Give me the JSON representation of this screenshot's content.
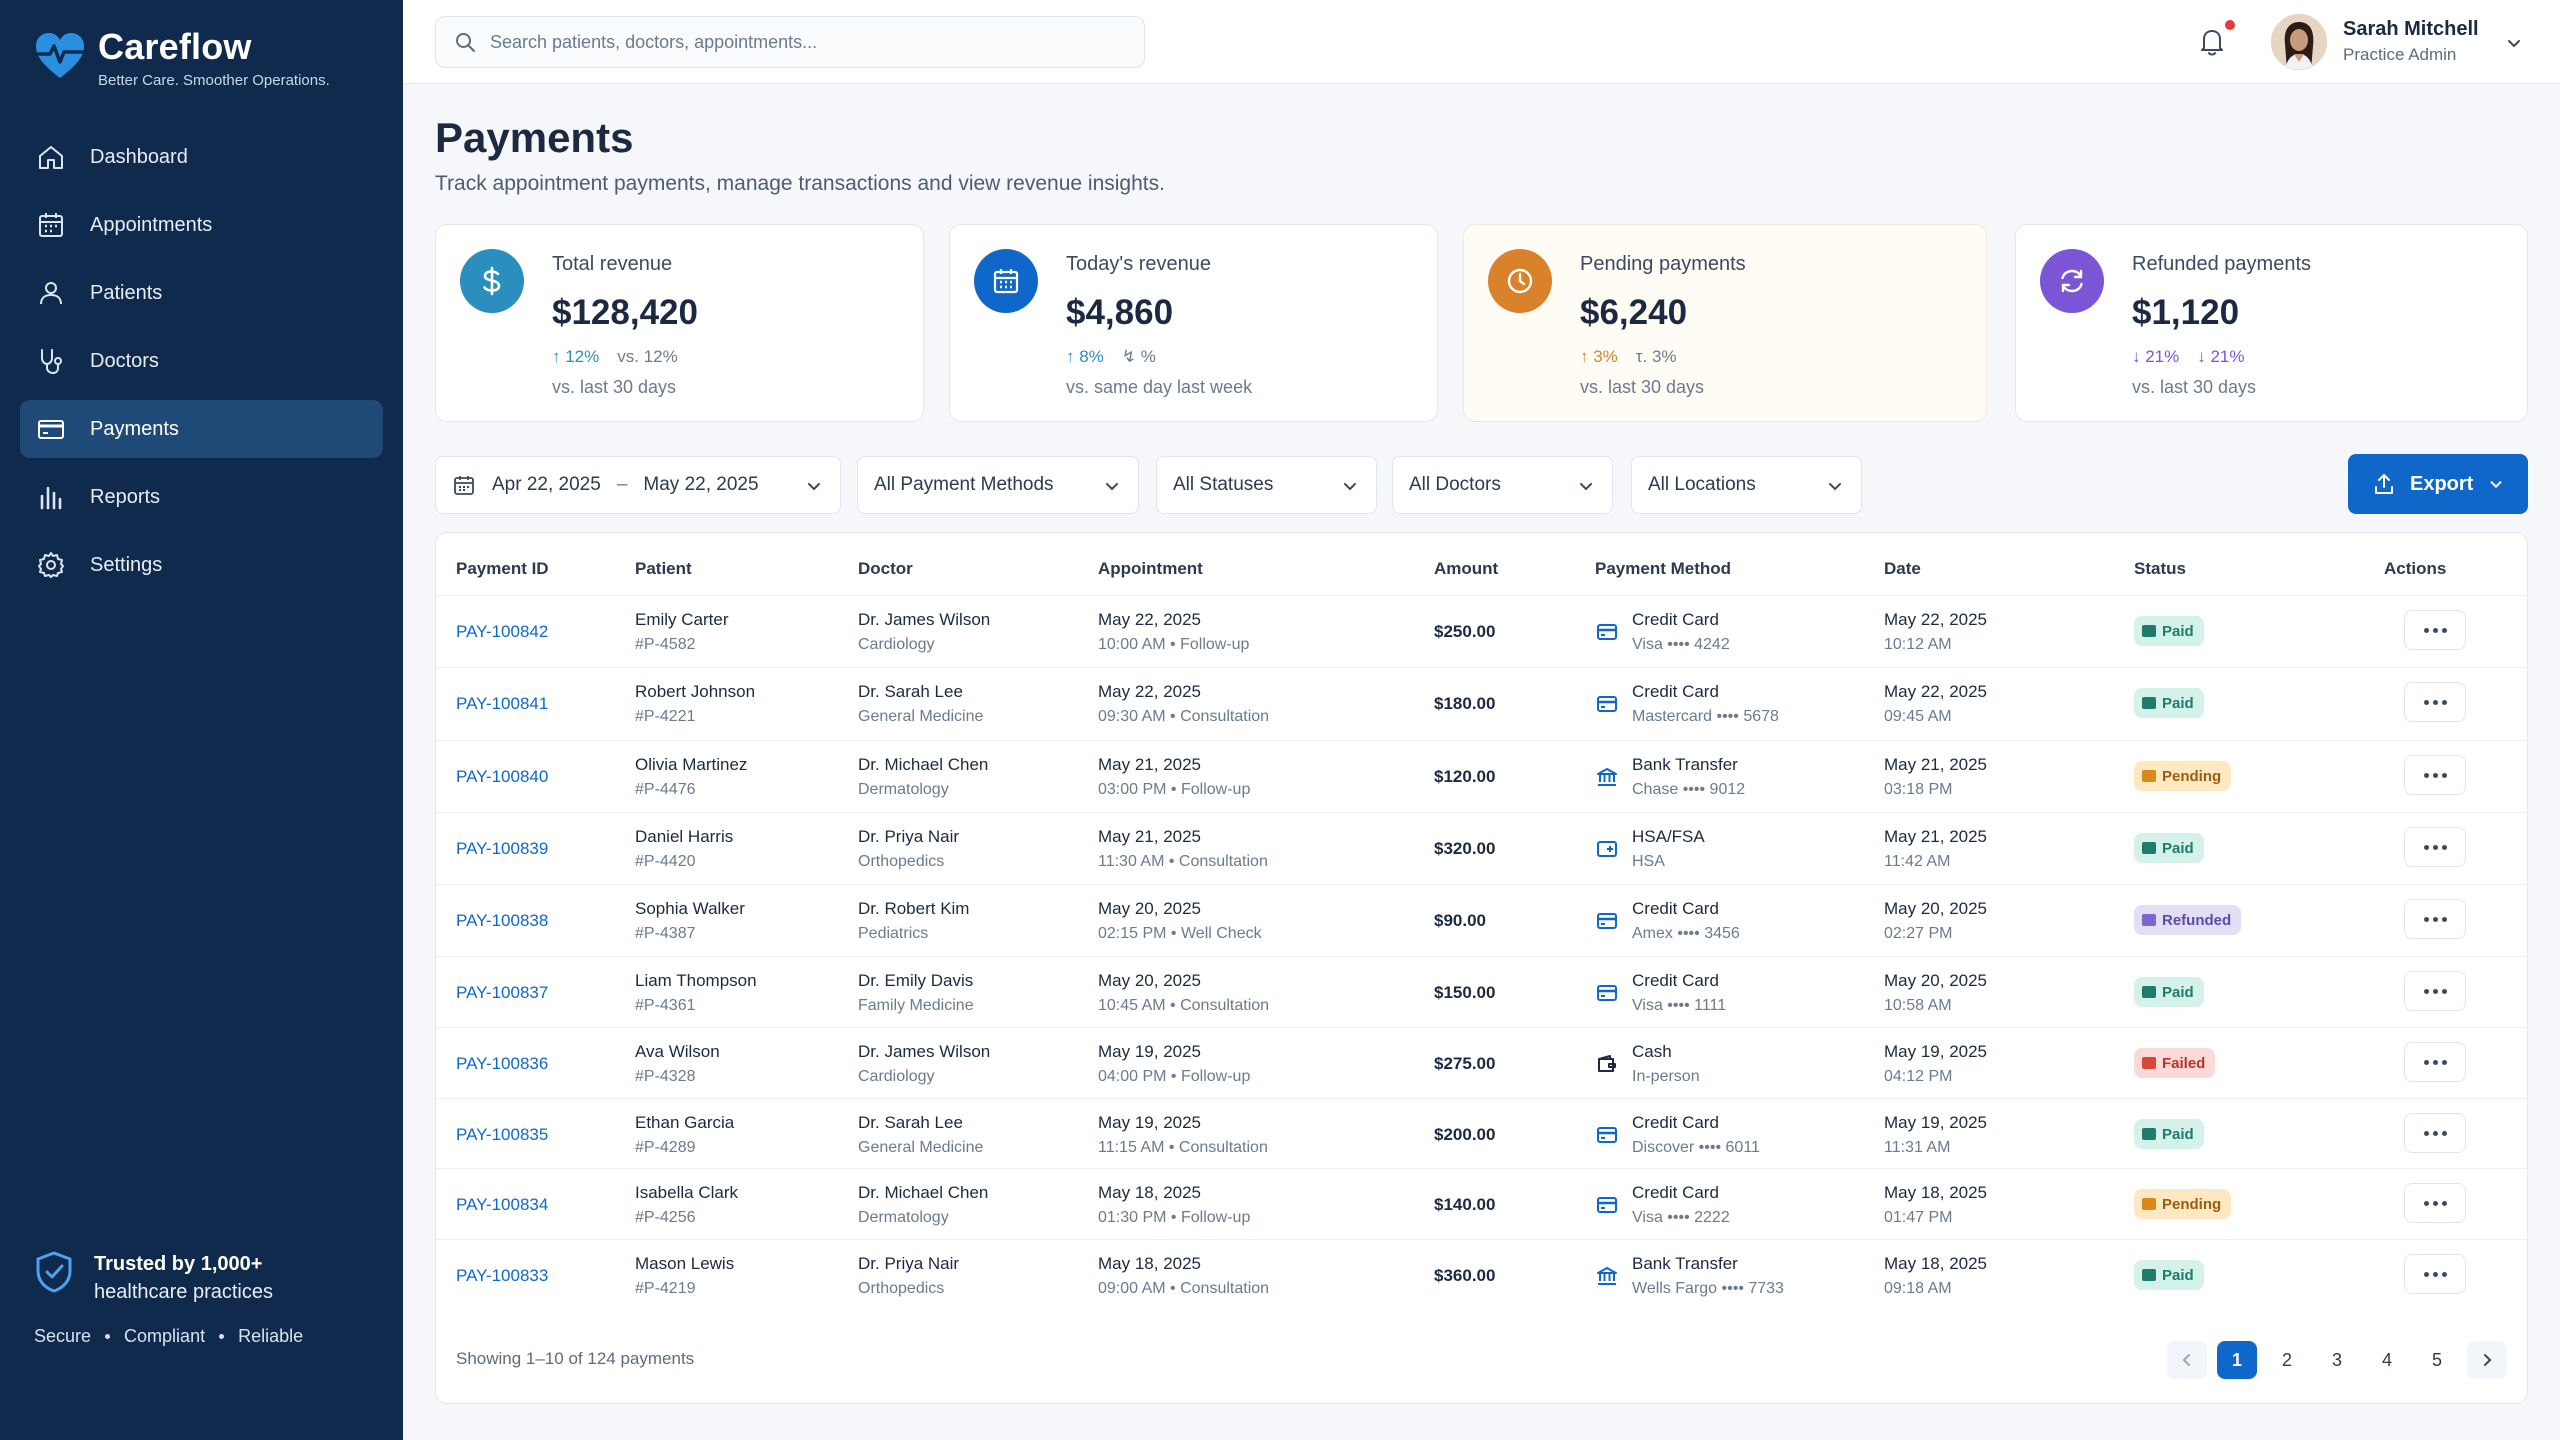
{
  "brand": {
    "name": "Careflow",
    "tagline": "Better Care. Smoother Operations."
  },
  "sidebar": {
    "items": [
      {
        "label": "Dashboard",
        "icon": "home-icon"
      },
      {
        "label": "Appointments",
        "icon": "calendar-icon"
      },
      {
        "label": "Patients",
        "icon": "user-icon"
      },
      {
        "label": "Doctors",
        "icon": "stethoscope-icon"
      },
      {
        "label": "Payments",
        "icon": "card-icon",
        "active": true
      },
      {
        "label": "Reports",
        "icon": "bar-chart-icon"
      },
      {
        "label": "Settings",
        "icon": "gear-icon"
      }
    ],
    "trust_title": "Trusted by 1,000+",
    "trust_sub": "healthcare practices",
    "trust_foot": [
      "Secure",
      "Compliant",
      "Reliable"
    ]
  },
  "header": {
    "search_placeholder": "Search patients, doctors, appointments...",
    "user_name": "Sarah Mitchell",
    "user_role": "Practice Admin"
  },
  "page": {
    "title": "Payments",
    "subtitle": "Track appointment payments, manage transactions and view revenue insights."
  },
  "stats": [
    {
      "label": "Total revenue",
      "value": "$128,420",
      "delta1": "↑ 12%",
      "delta2": "vs. 12%",
      "note": "vs. last 30 days",
      "color": "#2a8fbf"
    },
    {
      "label": "Today's revenue",
      "value": "$4,860",
      "delta1": "↑ 8%",
      "delta2": "↯ %",
      "note": "vs. same day last week",
      "color": "#0f68c9"
    },
    {
      "label": "Pending payments",
      "value": "$6,240",
      "delta1": "↑ 3%",
      "delta2": "τ. 3%",
      "note": "vs. last 30 days",
      "color": "#d9822b"
    },
    {
      "label": "Refunded payments",
      "value": "$1,120",
      "delta1": "↓ 21%",
      "delta2": "↓ 21%",
      "note": "vs. last 30 days",
      "color": "#7a55d6"
    }
  ],
  "filters": {
    "date_from": "Apr 22, 2025",
    "date_sep": "–",
    "date_to": "May 22, 2025",
    "method": "All Payment Methods",
    "status": "All Statuses",
    "doctor": "All Doctors",
    "location": "All Locations",
    "export_label": "Export"
  },
  "table": {
    "headers": [
      "Payment ID",
      "Patient",
      "Doctor",
      "Appointment",
      "Amount",
      "Payment Method",
      "Date",
      "Status",
      "Actions"
    ],
    "rows": [
      {
        "id": "PAY-100842",
        "patient": "Emily Carter",
        "pnum": "#P-4582",
        "doctor": "Dr. James Wilson",
        "spec": "Cardiology",
        "appt_date": "May 22, 2025",
        "appt_time": "10:00 AM • Follow-up",
        "amount": "$250.00",
        "method": "Credit Card",
        "method_sub": "Visa •••• 4242",
        "method_icon": "card",
        "date": "May 22, 2025",
        "time": "10:12 AM",
        "status": "Paid"
      },
      {
        "id": "PAY-100841",
        "patient": "Robert Johnson",
        "pnum": "#P-4221",
        "doctor": "Dr. Sarah Lee",
        "spec": "General Medicine",
        "appt_date": "May 22, 2025",
        "appt_time": "09:30 AM • Consultation",
        "amount": "$180.00",
        "method": "Credit Card",
        "method_sub": "Mastercard •••• 5678",
        "method_icon": "card",
        "date": "May 22, 2025",
        "time": "09:45 AM",
        "status": "Paid"
      },
      {
        "id": "PAY-100840",
        "patient": "Olivia Martinez",
        "pnum": "#P-4476",
        "doctor": "Dr. Michael Chen",
        "spec": "Dermatology",
        "appt_date": "May 21, 2025",
        "appt_time": "03:00 PM • Follow-up",
        "amount": "$120.00",
        "method": "Bank Transfer",
        "method_sub": "Chase •••• 9012",
        "method_icon": "bank",
        "date": "May 21, 2025",
        "time": "03:18 PM",
        "status": "Pending"
      },
      {
        "id": "PAY-100839",
        "patient": "Daniel Harris",
        "pnum": "#P-4420",
        "doctor": "Dr. Priya Nair",
        "spec": "Orthopedics",
        "appt_date": "May 21, 2025",
        "appt_time": "11:30 AM • Consultation",
        "amount": "$320.00",
        "method": "HSA/FSA",
        "method_sub": "HSA",
        "method_icon": "hsa",
        "date": "May 21, 2025",
        "time": "11:42 AM",
        "status": "Paid"
      },
      {
        "id": "PAY-100838",
        "patient": "Sophia Walker",
        "pnum": "#P-4387",
        "doctor": "Dr. Robert Kim",
        "spec": "Pediatrics",
        "appt_date": "May 20, 2025",
        "appt_time": "02:15 PM • Well Check",
        "amount": "$90.00",
        "method": "Credit Card",
        "method_sub": "Amex •••• 3456",
        "method_icon": "card",
        "date": "May 20, 2025",
        "time": "02:27 PM",
        "status": "Refunded"
      },
      {
        "id": "PAY-100837",
        "patient": "Liam Thompson",
        "pnum": "#P-4361",
        "doctor": "Dr. Emily Davis",
        "spec": "Family Medicine",
        "appt_date": "May 20, 2025",
        "appt_time": "10:45 AM • Consultation",
        "amount": "$150.00",
        "method": "Credit Card",
        "method_sub": "Visa •••• 1111",
        "method_icon": "card",
        "date": "May 20, 2025",
        "time": "10:58 AM",
        "status": "Paid"
      },
      {
        "id": "PAY-100836",
        "patient": "Ava Wilson",
        "pnum": "#P-4328",
        "doctor": "Dr. James Wilson",
        "spec": "Cardiology",
        "appt_date": "May 19, 2025",
        "appt_time": "04:00 PM • Follow-up",
        "amount": "$275.00",
        "method": "Cash",
        "method_sub": "In-person",
        "method_icon": "cash",
        "date": "May 19, 2025",
        "time": "04:12 PM",
        "status": "Failed"
      },
      {
        "id": "PAY-100835",
        "patient": "Ethan Garcia",
        "pnum": "#P-4289",
        "doctor": "Dr. Sarah Lee",
        "spec": "General Medicine",
        "appt_date": "May 19, 2025",
        "appt_time": "11:15 AM • Consultation",
        "amount": "$200.00",
        "method": "Credit Card",
        "method_sub": "Discover •••• 6011",
        "method_icon": "card",
        "date": "May 19, 2025",
        "time": "11:31 AM",
        "status": "Paid"
      },
      {
        "id": "PAY-100834",
        "patient": "Isabella Clark",
        "pnum": "#P-4256",
        "doctor": "Dr. Michael Chen",
        "spec": "Dermatology",
        "appt_date": "May 18, 2025",
        "appt_time": "01:30 PM • Follow-up",
        "amount": "$140.00",
        "method": "Credit Card",
        "method_sub": "Visa •••• 2222",
        "method_icon": "card",
        "date": "May 18, 2025",
        "time": "01:47 PM",
        "status": "Pending"
      },
      {
        "id": "PAY-100833",
        "patient": "Mason Lewis",
        "pnum": "#P-4219",
        "doctor": "Dr. Priya Nair",
        "spec": "Orthopedics",
        "appt_date": "May 18, 2025",
        "appt_time": "09:00 AM • Consultation",
        "amount": "$360.00",
        "method": "Bank Transfer",
        "method_sub": "Wells Fargo •••• 7733",
        "method_icon": "bank",
        "date": "May 18, 2025",
        "time": "09:18 AM",
        "status": "Paid"
      }
    ],
    "showing": "Showing 1–10 of 124 payments",
    "pages": [
      "1",
      "2",
      "3",
      "4",
      "5"
    ]
  }
}
